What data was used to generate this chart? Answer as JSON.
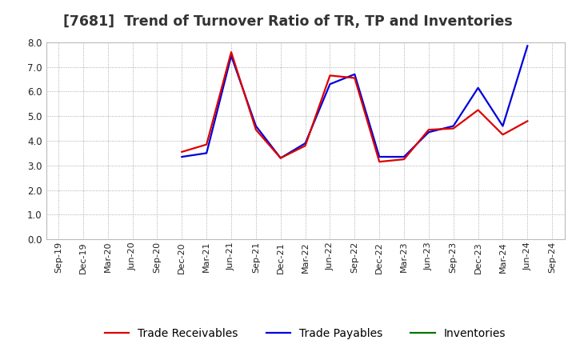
{
  "title": "[7681]  Trend of Turnover Ratio of TR, TP and Inventories",
  "x_labels": [
    "Sep-19",
    "Dec-19",
    "Mar-20",
    "Jun-20",
    "Sep-20",
    "Dec-20",
    "Mar-21",
    "Jun-21",
    "Sep-21",
    "Dec-21",
    "Mar-22",
    "Jun-22",
    "Sep-22",
    "Dec-22",
    "Mar-23",
    "Jun-23",
    "Sep-23",
    "Dec-23",
    "Mar-24",
    "Jun-24",
    "Sep-24"
  ],
  "trade_receivables": [
    null,
    null,
    null,
    null,
    null,
    3.55,
    3.85,
    7.6,
    4.45,
    3.3,
    3.8,
    6.65,
    6.55,
    3.15,
    3.25,
    4.45,
    4.5,
    5.25,
    4.25,
    4.8,
    null
  ],
  "trade_payables": [
    null,
    null,
    null,
    null,
    null,
    3.35,
    3.5,
    7.45,
    4.6,
    3.3,
    3.9,
    6.3,
    6.7,
    3.35,
    3.35,
    4.35,
    4.6,
    6.15,
    4.6,
    7.85,
    null
  ],
  "inventories": [
    null,
    null,
    null,
    null,
    null,
    null,
    null,
    null,
    null,
    null,
    null,
    null,
    null,
    null,
    null,
    null,
    null,
    null,
    null,
    null,
    null
  ],
  "ylim": [
    0.0,
    8.0
  ],
  "yticks": [
    0.0,
    1.0,
    2.0,
    3.0,
    4.0,
    5.0,
    6.0,
    7.0,
    8.0
  ],
  "colors": {
    "trade_receivables": "#dd0000",
    "trade_payables": "#0000dd",
    "inventories": "#007700"
  },
  "background_color": "#ffffff",
  "plot_bg_color": "#ffffff",
  "grid_color": "#999999",
  "title_color": "#333333",
  "title_fontsize": 12.5,
  "legend_fontsize": 10
}
